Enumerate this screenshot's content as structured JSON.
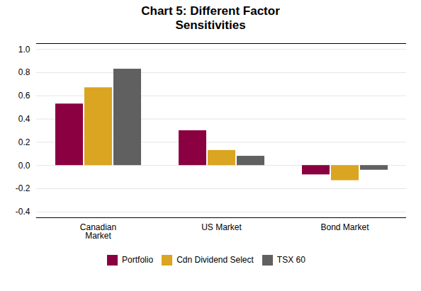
{
  "chart_data": {
    "type": "bar",
    "title": "Chart 5: Different Factor\nSensitivities",
    "categories": [
      "Canadian\nMarket",
      "US Market",
      "Bond Market"
    ],
    "series": [
      {
        "name": "Portfolio",
        "color": "#8B0040",
        "values": [
          0.53,
          0.3,
          -0.08
        ]
      },
      {
        "name": "Cdn Dividend Select",
        "color": "#DAA520",
        "values": [
          0.67,
          0.13,
          -0.13
        ]
      },
      {
        "name": "TSX 60",
        "color": "#606060",
        "values": [
          0.83,
          0.08,
          -0.04
        ]
      }
    ],
    "ylim": [
      -0.45,
      1.05
    ],
    "yticks": [
      -0.4,
      -0.2,
      {
        "value": 0.0,
        "label": "0.0"
      },
      0.2,
      0.4,
      0.6,
      0.8,
      {
        "value": 1.0,
        "label": "1.0"
      }
    ],
    "grid": true,
    "legend": "bottom"
  }
}
